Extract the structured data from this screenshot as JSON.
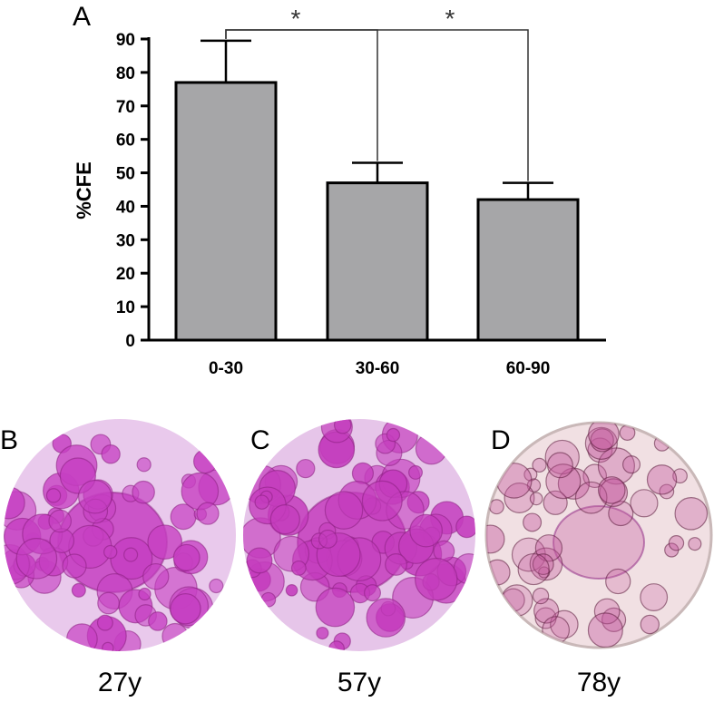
{
  "panels": {
    "a": "A",
    "b": "B",
    "c": "C",
    "d": "D"
  },
  "chart_data": {
    "type": "bar",
    "categories": [
      "0-30",
      "30-60",
      "60-90"
    ],
    "values": [
      77,
      47,
      42
    ],
    "errors": [
      12.5,
      6,
      5
    ],
    "ylabel": "%CFE",
    "xlabel": "",
    "ylim": [
      0,
      90
    ],
    "yticks": [
      0,
      10,
      20,
      30,
      40,
      50,
      60,
      70,
      80,
      90
    ],
    "bar_color": "#a6a6a8",
    "grid": false,
    "significance": [
      {
        "from": 0,
        "to": 1,
        "label": "*"
      },
      {
        "from": 0,
        "to": 2,
        "label": "*"
      }
    ]
  },
  "dishes": [
    {
      "label": "27y",
      "stain": "#c63fc2",
      "background": "#e9c9ec"
    },
    {
      "label": "57y",
      "stain": "#c43cbd",
      "background": "#e6c5e9"
    },
    {
      "label": "78y",
      "stain": "#c45a9e",
      "background": "#f1e0e3"
    }
  ]
}
